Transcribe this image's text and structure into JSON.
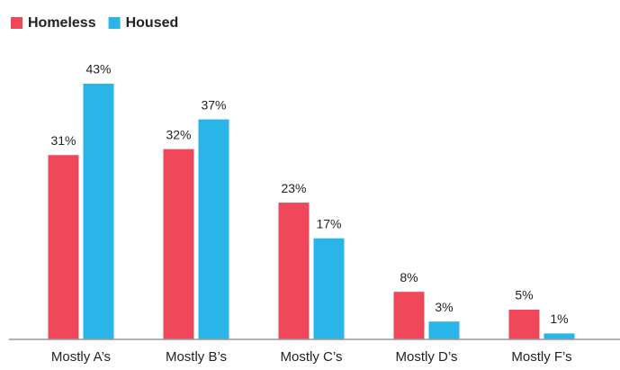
{
  "chart_data": {
    "type": "bar",
    "categories": [
      "Mostly A’s",
      "Mostly B’s",
      "Mostly C’s",
      "Mostly D’s",
      "Mostly F’s"
    ],
    "series": [
      {
        "name": "Homeless",
        "color": "#f0485a",
        "values": [
          31,
          32,
          23,
          8,
          5
        ],
        "value_labels": [
          "31%",
          "32%",
          "23%",
          "8%",
          "5%"
        ]
      },
      {
        "name": "Housed",
        "color": "#29b5e8",
        "values": [
          43,
          37,
          17,
          3,
          1
        ],
        "value_labels": [
          "43%",
          "37%",
          "17%",
          "3%",
          "1%"
        ]
      }
    ]
  }
}
